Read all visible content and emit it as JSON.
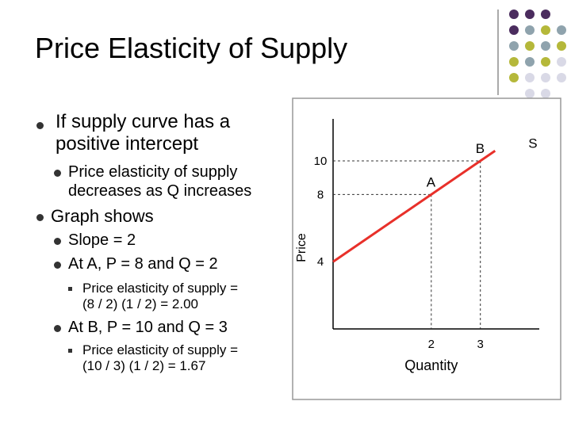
{
  "title": "Price Elasticity of Supply",
  "bullets": [
    {
      "text": "If supply curve has a positive intercept",
      "children": [
        {
          "text": "Price elasticity of supply decreases as Q increases"
        }
      ]
    },
    {
      "text": "Graph shows",
      "children": [
        {
          "text": "Slope = 2"
        },
        {
          "text": "At A, P = 8 and Q = 2",
          "children": [
            {
              "text": "Price elasticity of supply = (8 / 2) (1 / 2) = 2.00"
            }
          ]
        },
        {
          "text": "At B, P = 10 and Q = 3",
          "children": [
            {
              "text": "Price elasticity of supply = (10 / 3) (1 / 2) = 1.67"
            }
          ]
        }
      ]
    }
  ],
  "chart_data": {
    "type": "line",
    "xlabel": "Quantity",
    "ylabel": "Price",
    "series": [
      {
        "name": "S",
        "color": "#e8302a",
        "x": [
          0,
          3.3
        ],
        "values": [
          4,
          10.6
        ]
      }
    ],
    "points": [
      {
        "label": "A",
        "x": 2,
        "y": 8
      },
      {
        "label": "B",
        "x": 3,
        "y": 10
      }
    ],
    "xlim": [
      0,
      4.2
    ],
    "ylim": [
      0,
      12.5
    ],
    "xticks": [
      2,
      3
    ],
    "yticks": [
      4,
      8,
      10
    ]
  }
}
